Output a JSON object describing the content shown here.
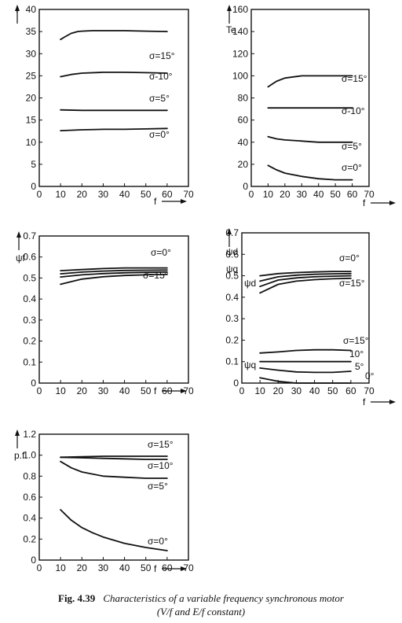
{
  "caption": {
    "number": "Fig. 4.39",
    "line1": "Characteristics of a variable frequency synchronous motor",
    "line2": "(V/f and E/f constant)"
  },
  "chart_data": [
    {
      "type": "line",
      "ylabel": "I",
      "xlabel": "f",
      "xticks": [
        "0",
        "10",
        "20",
        "30",
        "40",
        "50",
        "60",
        "70"
      ],
      "yticks": [
        "0",
        "5",
        "10",
        "15",
        "20",
        "25",
        "30",
        "35",
        "40"
      ],
      "xlim": [
        0,
        70
      ],
      "ylim": [
        0,
        40
      ],
      "grid": false,
      "series": [
        {
          "name": "σ=15°",
          "x": [
            10,
            12,
            15,
            18,
            20,
            25,
            30,
            40,
            50,
            60
          ],
          "y": [
            33.2,
            33.8,
            34.6,
            35.0,
            35.1,
            35.2,
            35.2,
            35.2,
            35.1,
            35.0
          ]
        },
        {
          "name": "σ-10°",
          "x": [
            10,
            15,
            20,
            30,
            40,
            50,
            60
          ],
          "y": [
            24.8,
            25.3,
            25.6,
            25.8,
            25.8,
            25.7,
            25.6
          ]
        },
        {
          "name": "σ=5°",
          "x": [
            10,
            20,
            30,
            40,
            50,
            60
          ],
          "y": [
            17.3,
            17.2,
            17.2,
            17.2,
            17.2,
            17.2
          ]
        },
        {
          "name": "σ=0°",
          "x": [
            10,
            20,
            30,
            40,
            50,
            60
          ],
          "y": [
            12.6,
            12.8,
            12.9,
            12.9,
            13.0,
            13.1
          ]
        }
      ]
    },
    {
      "type": "line",
      "ylabel": "Te",
      "xlabel": "f",
      "xticks": [
        "0",
        "10",
        "20",
        "30",
        "40",
        "50",
        "60",
        "70"
      ],
      "yticks": [
        "0",
        "20",
        "40",
        "60",
        "80",
        "100",
        "120",
        "140",
        "160"
      ],
      "xlim": [
        0,
        70
      ],
      "ylim": [
        0,
        160
      ],
      "grid": false,
      "series": [
        {
          "name": "σ=15°",
          "x": [
            10,
            15,
            20,
            30,
            40,
            50,
            60
          ],
          "y": [
            90,
            95,
            98,
            100,
            100,
            100,
            100
          ]
        },
        {
          "name": "σ-10°",
          "x": [
            10,
            20,
            30,
            40,
            50,
            60
          ],
          "y": [
            71,
            71,
            71,
            71,
            71,
            71
          ]
        },
        {
          "name": "σ=5°",
          "x": [
            10,
            15,
            20,
            30,
            40,
            50,
            60
          ],
          "y": [
            45,
            43,
            42,
            41,
            40,
            40,
            40
          ]
        },
        {
          "name": "σ=0°",
          "x": [
            10,
            15,
            20,
            30,
            40,
            50,
            60
          ],
          "y": [
            19,
            15,
            12,
            9,
            7,
            6,
            6
          ]
        }
      ]
    },
    {
      "type": "line",
      "ylabel": "ψf",
      "xlabel": "f",
      "xticks": [
        "0",
        "10",
        "20",
        "30",
        "40",
        "50",
        "60",
        "70"
      ],
      "yticks": [
        "0",
        "0.1",
        "0.2",
        "0.3",
        "0.4",
        "0.5",
        "0.6",
        "0.7"
      ],
      "xlim": [
        0,
        70
      ],
      "ylim": [
        0,
        0.7
      ],
      "grid": false,
      "labels": [
        "σ=0°",
        "σ=15°"
      ],
      "series": [
        {
          "x": [
            10,
            20,
            30,
            40,
            50,
            60
          ],
          "y": [
            0.535,
            0.54,
            0.545,
            0.548,
            0.548,
            0.548
          ]
        },
        {
          "x": [
            10,
            20,
            30,
            40,
            50,
            60
          ],
          "y": [
            0.52,
            0.528,
            0.533,
            0.536,
            0.537,
            0.538
          ]
        },
        {
          "x": [
            10,
            20,
            30,
            40,
            50,
            60
          ],
          "y": [
            0.505,
            0.515,
            0.521,
            0.525,
            0.527,
            0.528
          ]
        },
        {
          "x": [
            10,
            20,
            30,
            40,
            50,
            60
          ],
          "y": [
            0.47,
            0.495,
            0.506,
            0.512,
            0.515,
            0.517
          ]
        }
      ]
    },
    {
      "type": "line",
      "ylabel": "ψd",
      "ylabel2": "ψq",
      "xlabel": "f",
      "xticks": [
        "0",
        "10",
        "20",
        "30",
        "40",
        "50",
        "60",
        "70"
      ],
      "yticks": [
        "0",
        "0.1",
        "0.2",
        "0.3",
        "0.4",
        "0.5",
        "0.6",
        "0.7"
      ],
      "xlim": [
        0,
        70
      ],
      "ylim": [
        0,
        0.7
      ],
      "grid": false,
      "group_labels": [
        "ψd",
        "ψq"
      ],
      "labels": [
        "σ=0°",
        "σ=15°",
        "σ=15°",
        "10°",
        "5°",
        "0°"
      ],
      "series": [
        {
          "x": [
            10,
            20,
            30,
            40,
            50,
            60
          ],
          "y": [
            0.5,
            0.51,
            0.515,
            0.518,
            0.52,
            0.52
          ]
        },
        {
          "x": [
            10,
            20,
            30,
            40,
            50,
            60
          ],
          "y": [
            0.475,
            0.495,
            0.503,
            0.507,
            0.509,
            0.51
          ]
        },
        {
          "x": [
            10,
            20,
            30,
            40,
            50,
            60
          ],
          "y": [
            0.45,
            0.48,
            0.49,
            0.495,
            0.498,
            0.5
          ]
        },
        {
          "x": [
            10,
            20,
            30,
            40,
            50,
            60
          ],
          "y": [
            0.42,
            0.46,
            0.475,
            0.482,
            0.486,
            0.488
          ]
        },
        {
          "x": [
            10,
            20,
            30,
            40,
            50,
            60
          ],
          "y": [
            0.14,
            0.145,
            0.152,
            0.155,
            0.155,
            0.152
          ]
        },
        {
          "x": [
            10,
            20,
            30,
            40,
            50,
            60
          ],
          "y": [
            0.1,
            0.1,
            0.1,
            0.1,
            0.1,
            0.1
          ]
        },
        {
          "x": [
            10,
            20,
            30,
            40,
            50,
            60
          ],
          "y": [
            0.07,
            0.06,
            0.052,
            0.05,
            0.05,
            0.055
          ]
        },
        {
          "x": [
            10,
            20,
            30,
            40,
            50,
            60
          ],
          "y": [
            0.025,
            0.008,
            0.0,
            0.0,
            0.0,
            0.0
          ]
        }
      ]
    },
    {
      "type": "line",
      "ylabel": "p.f.",
      "xlabel": "f",
      "xticks": [
        "0",
        "10",
        "20",
        "30",
        "40",
        "50",
        "60",
        "70"
      ],
      "yticks": [
        "0",
        "0.2",
        "0.4",
        "0.6",
        "0.8",
        "1.0",
        "1.2"
      ],
      "xlim": [
        0,
        70
      ],
      "ylim": [
        0,
        1.2
      ],
      "grid": false,
      "series": [
        {
          "name": "σ=15°",
          "x": [
            10,
            20,
            30,
            40,
            50,
            60
          ],
          "y": [
            0.98,
            0.985,
            0.99,
            0.99,
            0.99,
            0.99
          ]
        },
        {
          "name": "σ=10°",
          "x": [
            10,
            20,
            30,
            40,
            50,
            60
          ],
          "y": [
            0.98,
            0.975,
            0.97,
            0.965,
            0.96,
            0.96
          ]
        },
        {
          "name": "σ=5°",
          "x": [
            10,
            15,
            20,
            30,
            40,
            50,
            60
          ],
          "y": [
            0.94,
            0.88,
            0.84,
            0.8,
            0.79,
            0.78,
            0.78
          ]
        },
        {
          "name": "σ=0°",
          "x": [
            10,
            15,
            20,
            25,
            30,
            40,
            50,
            60
          ],
          "y": [
            0.48,
            0.38,
            0.31,
            0.26,
            0.22,
            0.16,
            0.12,
            0.09
          ]
        }
      ]
    }
  ]
}
